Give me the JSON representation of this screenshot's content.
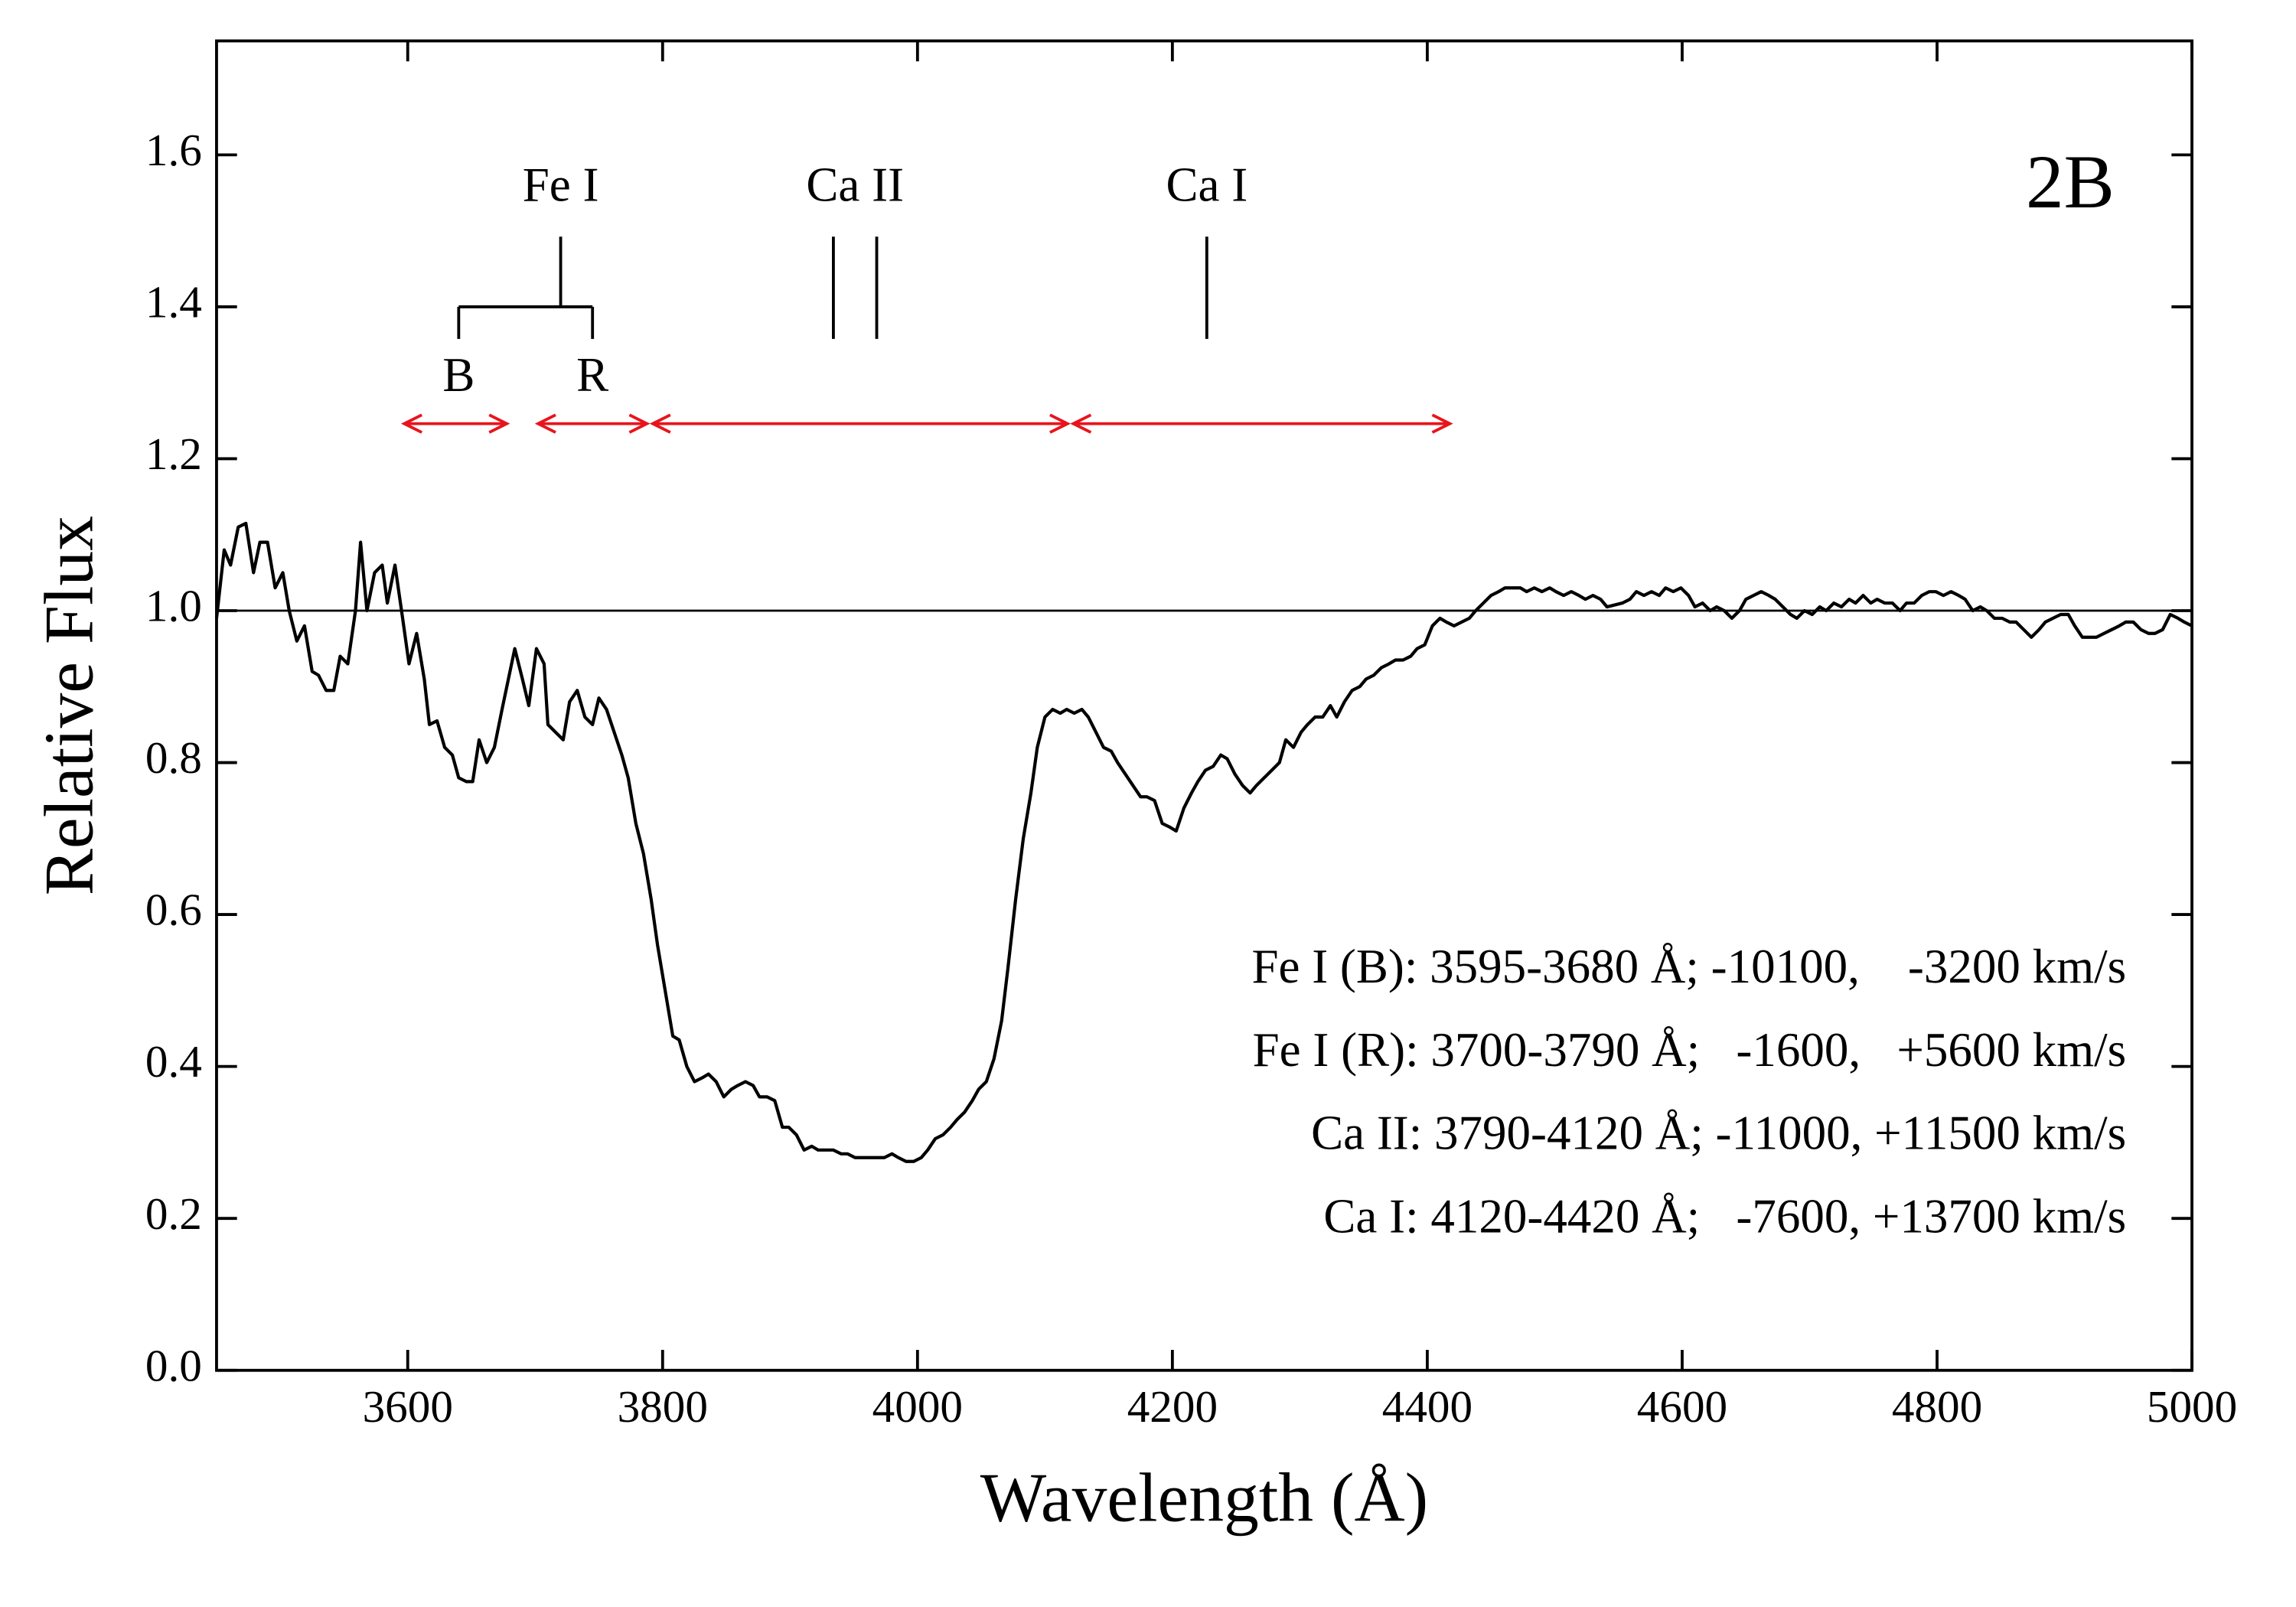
{
  "chart_data": {
    "type": "line",
    "panel_label": "2B",
    "x_label": "Wavelength (Å)",
    "y_label": "Relative Flux",
    "xlim": [
      3450,
      5000
    ],
    "xticks": [
      3600,
      3800,
      4000,
      4200,
      4400,
      4600,
      4800,
      5000
    ],
    "ylim": [
      0,
      1.75
    ],
    "yticks": [
      {
        "value": 0,
        "label": "0.0"
      },
      0.2,
      0.4,
      0.6,
      0.8,
      {
        "value": 1,
        "label": "1.0"
      },
      1.2,
      1.4,
      1.6
    ],
    "color": "#000000",
    "reference_line": 1,
    "x": [
      3450,
      3456,
      3461,
      3467,
      3473,
      3479,
      3484,
      3490,
      3496,
      3502,
      3507,
      3513,
      3519,
      3525,
      3530,
      3536,
      3542,
      3547,
      3553,
      3559,
      3563,
      3568,
      3574,
      3580,
      3584,
      3590,
      3596,
      3601,
      3607,
      3613,
      3617,
      3623,
      3629,
      3635,
      3640,
      3646,
      3651,
      3656,
      3662,
      3668,
      3674,
      3679,
      3684,
      3690,
      3695,
      3701,
      3707,
      3710,
      3716,
      3722,
      3727,
      3733,
      3739,
      3745,
      3750,
      3756,
      3762,
      3768,
      3773,
      3779,
      3785,
      3791,
      3796,
      3802,
      3808,
      3813,
      3819,
      3825,
      3831,
      3836,
      3842,
      3848,
      3854,
      3859,
      3865,
      3871,
      3876,
      3882,
      3888,
      3894,
      3899,
      3905,
      3911,
      3917,
      3922,
      3928,
      3934,
      3940,
      3945,
      3951,
      3957,
      3962,
      3968,
      3974,
      3980,
      3985,
      3991,
      3997,
      4003,
      4008,
      4014,
      4020,
      4026,
      4031,
      4037,
      4043,
      4048,
      4054,
      4060,
      4066,
      4071,
      4077,
      4083,
      4089,
      4094,
      4100,
      4106,
      4112,
      4117,
      4123,
      4129,
      4134,
      4140,
      4146,
      4152,
      4157,
      4163,
      4169,
      4175,
      4180,
      4186,
      4192,
      4198,
      4203,
      4209,
      4215,
      4220,
      4226,
      4232,
      4238,
      4243,
      4249,
      4255,
      4261,
      4266,
      4272,
      4278,
      4284,
      4289,
      4295,
      4301,
      4306,
      4312,
      4318,
      4324,
      4329,
      4335,
      4341,
      4347,
      4352,
      4358,
      4364,
      4370,
      4375,
      4381,
      4387,
      4392,
      4398,
      4404,
      4410,
      4415,
      4421,
      4427,
      4433,
      4438,
      4444,
      4450,
      4456,
      4461,
      4473,
      4478,
      4484,
      4490,
      4496,
      4501,
      4507,
      4513,
      4519,
      4524,
      4530,
      4536,
      4541,
      4553,
      4559,
      4564,
      4570,
      4576,
      4582,
      4587,
      4593,
      4599,
      4605,
      4610,
      4616,
      4622,
      4627,
      4633,
      4639,
      4645,
      4650,
      4656,
      4662,
      4668,
      4673,
      4679,
      4685,
      4690,
      4696,
      4702,
      4708,
      4713,
      4719,
      4725,
      4731,
      4736,
      4742,
      4748,
      4753,
      4759,
      4765,
      4771,
      4776,
      4782,
      4788,
      4794,
      4799,
      4805,
      4811,
      4817,
      4822,
      4828,
      4834,
      4839,
      4845,
      4851,
      4857,
      4862,
      4868,
      4874,
      4880,
      4885,
      4891,
      4897,
      4903,
      4908,
      4914,
      4920,
      4925,
      4931,
      4937,
      4943,
      4948,
      4954,
      4960,
      4966,
      4971,
      4977,
      4983,
      4989,
      4994,
      5000
    ],
    "values": [
      0.99,
      1.08,
      1.06,
      1.11,
      1.115,
      1.05,
      1.09,
      1.09,
      1.03,
      1.05,
      1.0,
      0.96,
      0.98,
      0.92,
      0.915,
      0.895,
      0.895,
      0.94,
      0.93,
      1.0,
      1.09,
      1.0,
      1.05,
      1.06,
      1.01,
      1.06,
      0.99,
      0.93,
      0.97,
      0.91,
      0.85,
      0.855,
      0.82,
      0.81,
      0.78,
      0.775,
      0.775,
      0.83,
      0.8,
      0.82,
      0.87,
      0.91,
      0.95,
      0.91,
      0.875,
      0.95,
      0.93,
      0.85,
      0.84,
      0.83,
      0.88,
      0.895,
      0.86,
      0.85,
      0.885,
      0.87,
      0.84,
      0.81,
      0.78,
      0.72,
      0.68,
      0.62,
      0.56,
      0.5,
      0.44,
      0.435,
      0.4,
      0.38,
      0.385,
      0.39,
      0.38,
      0.36,
      0.37,
      0.375,
      0.38,
      0.375,
      0.36,
      0.36,
      0.355,
      0.32,
      0.32,
      0.31,
      0.29,
      0.295,
      0.29,
      0.29,
      0.29,
      0.285,
      0.285,
      0.28,
      0.28,
      0.28,
      0.28,
      0.28,
      0.285,
      0.28,
      0.275,
      0.275,
      0.28,
      0.29,
      0.305,
      0.31,
      0.32,
      0.33,
      0.34,
      0.355,
      0.37,
      0.38,
      0.41,
      0.46,
      0.53,
      0.62,
      0.7,
      0.76,
      0.82,
      0.86,
      0.87,
      0.865,
      0.87,
      0.865,
      0.87,
      0.86,
      0.84,
      0.82,
      0.815,
      0.8,
      0.785,
      0.77,
      0.755,
      0.755,
      0.75,
      0.72,
      0.715,
      0.71,
      0.74,
      0.76,
      0.775,
      0.79,
      0.795,
      0.81,
      0.805,
      0.785,
      0.77,
      0.76,
      0.77,
      0.78,
      0.79,
      0.8,
      0.83,
      0.82,
      0.84,
      0.85,
      0.86,
      0.86,
      0.875,
      0.86,
      0.88,
      0.895,
      0.9,
      0.91,
      0.915,
      0.925,
      0.93,
      0.935,
      0.935,
      0.94,
      0.95,
      0.955,
      0.98,
      0.99,
      0.985,
      0.98,
      0.985,
      0.99,
      1.0,
      1.01,
      1.02,
      1.025,
      1.03,
      1.03,
      1.025,
      1.03,
      1.025,
      1.03,
      1.025,
      1.02,
      1.025,
      1.02,
      1.015,
      1.02,
      1.015,
      1.005,
      1.01,
      1.015,
      1.025,
      1.02,
      1.025,
      1.02,
      1.03,
      1.025,
      1.03,
      1.02,
      1.005,
      1.01,
      1.0,
      1.005,
      1.0,
      0.99,
      1.0,
      1.015,
      1.02,
      1.025,
      1.02,
      1.015,
      1.005,
      0.995,
      0.99,
      1.0,
      0.995,
      1.005,
      1.0,
      1.01,
      1.005,
      1.015,
      1.01,
      1.02,
      1.01,
      1.015,
      1.01,
      1.01,
      1.0,
      1.01,
      1.01,
      1.02,
      1.025,
      1.025,
      1.02,
      1.025,
      1.02,
      1.015,
      1.0,
      1.005,
      1.0,
      0.99,
      0.99,
      0.985,
      0.985,
      0.975,
      0.965,
      0.975,
      0.985,
      0.99,
      0.995,
      0.995,
      0.98,
      0.965,
      0.965,
      0.965,
      0.97,
      0.975,
      0.98,
      0.985,
      0.985,
      0.975,
      0.97,
      0.97,
      0.975,
      0.995,
      0.99,
      0.985,
      0.98
    ],
    "line_ids": {
      "fe": {
        "label": "Fe I",
        "rest": 3720,
        "components": [
          {
            "label": "B",
            "x": 3640
          },
          {
            "label": "R",
            "x": 3745
          }
        ]
      },
      "ca2": {
        "label": "Ca II",
        "lines": [
          3934,
          3968
        ]
      },
      "ca1": {
        "label": "Ca I",
        "lines": [
          4227
        ]
      }
    },
    "range_color": "#e8141c",
    "ranges": [
      {
        "from": 3595,
        "to": 3680
      },
      {
        "from": 3700,
        "to": 3790
      },
      {
        "from": 3790,
        "to": 4120
      },
      {
        "from": 4120,
        "to": 4420
      }
    ],
    "notes": [
      "Fe I (B): 3595-3680 Å; -10100,    -3200 km/s",
      "Fe I (R): 3700-3790 Å;   -1600,   +5600 km/s",
      "Ca II: 3790-4120 Å; -11000, +11500 km/s",
      "Ca I: 4120-4420 Å;   -7600, +13700 km/s"
    ]
  }
}
